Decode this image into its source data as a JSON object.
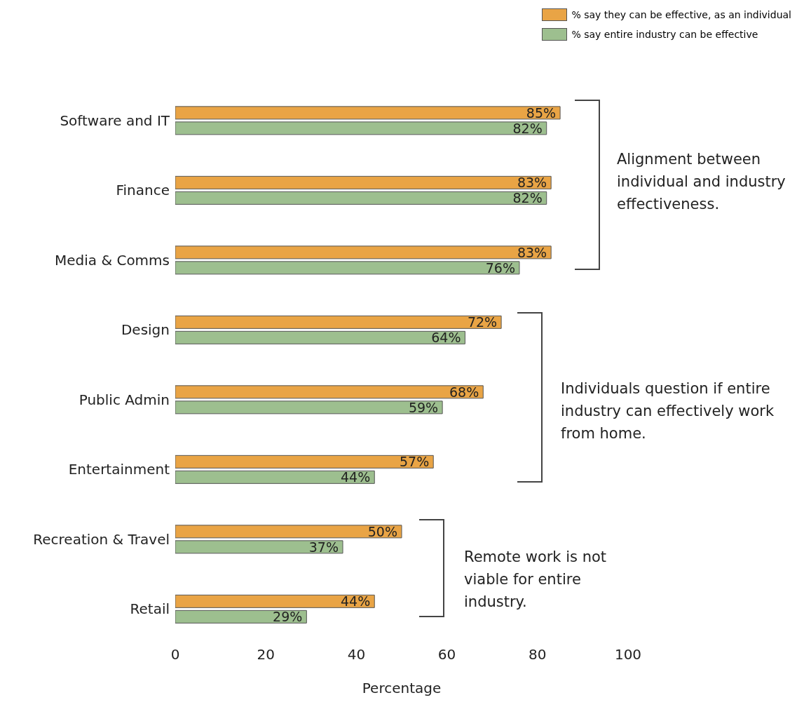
{
  "chart_data": {
    "type": "bar",
    "orientation": "horizontal",
    "xlabel": "Percentage",
    "categories": [
      "Software and IT",
      "Finance",
      "Media & Comms",
      "Design",
      "Public Admin",
      "Entertainment",
      "Recreation & Travel",
      "Retail"
    ],
    "series": [
      {
        "name": "% say they can be effective, as an individual",
        "color": "#e9a445",
        "values": [
          85,
          83,
          83,
          72,
          68,
          57,
          50,
          44
        ],
        "value_labels": [
          "85%",
          "83%",
          "83%",
          "72%",
          "68%",
          "57%",
          "50%",
          "44%"
        ]
      },
      {
        "name": "% say entire industry can be effective",
        "color": "#9dbf8f",
        "values": [
          82,
          82,
          76,
          64,
          59,
          44,
          37,
          29
        ],
        "value_labels": [
          "82%",
          "82%",
          "76%",
          "64%",
          "59%",
          "44%",
          "37%",
          "29%"
        ]
      }
    ],
    "xlim": [
      0,
      100
    ],
    "xticks": [
      0,
      20,
      40,
      60,
      80,
      100
    ],
    "grid": false,
    "legend": "top right",
    "annotations": [
      "Alignment between individual and industry effectiveness.",
      "Individuals question if entire industry can effectively work from home.",
      "Remote work is not viable for entire industry."
    ]
  }
}
